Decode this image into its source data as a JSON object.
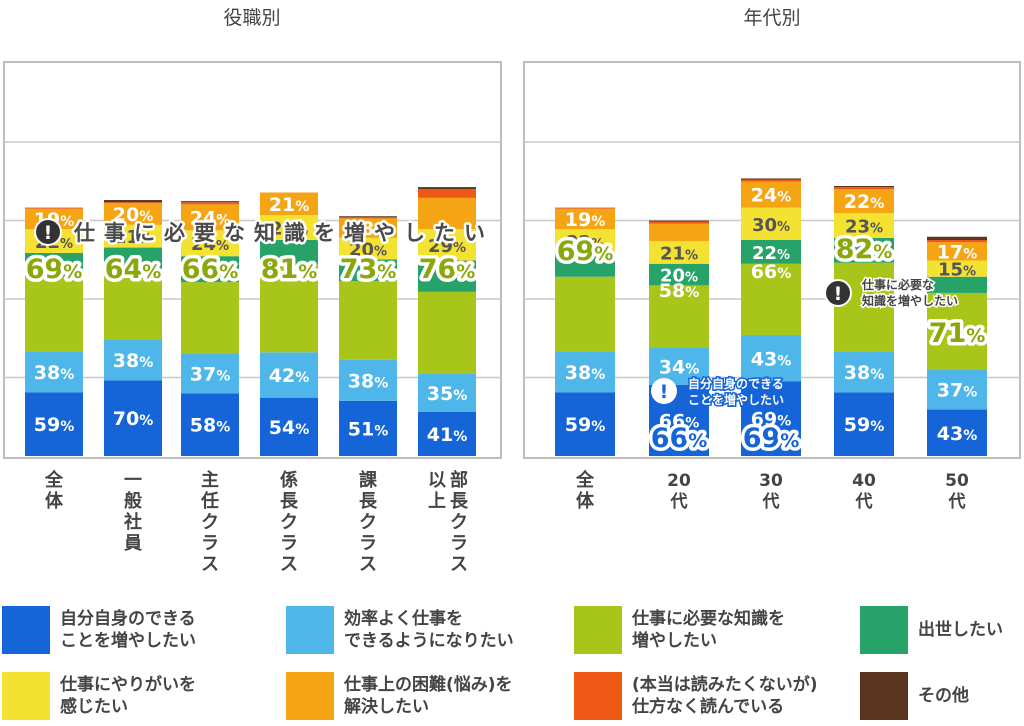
{
  "chart_data": [
    {
      "type": "bar",
      "stacked": true,
      "title": "役職別",
      "categories": [
        "全体",
        "一般社員",
        "主任クラス",
        "係長クラス",
        "課長クラス",
        "部長クラス以上"
      ],
      "series_order_bottom_to_top": [
        "increase_self",
        "efficiency",
        "knowledge",
        "promotion",
        "motivation",
        "problem_solving",
        "reluctant",
        "other"
      ],
      "values": {
        "increase_self": [
          59,
          70,
          58,
          54,
          51,
          41
        ],
        "efficiency": [
          38,
          38,
          37,
          42,
          38,
          35
        ],
        "knowledge": [
          69,
          64,
          66,
          81,
          73,
          76
        ],
        "promotion": [
          22,
          21,
          24,
          23,
          20,
          29
        ],
        "motivation": [
          22,
          21,
          24,
          23,
          20,
          29
        ],
        "problem_solving": [
          19,
          20,
          24,
          21,
          18,
          29
        ],
        "reluctant": [
          1,
          1,
          2,
          0,
          1,
          8
        ],
        "other": [
          0,
          2,
          1,
          0,
          1,
          2
        ]
      },
      "visible_labels": {
        "increase_self": [
          "59%",
          "70%",
          "58%",
          "54%",
          "51%",
          "41%"
        ],
        "efficiency": [
          "38%",
          "38%",
          "37%",
          "42%",
          "38%",
          "35%"
        ],
        "knowledge": [
          "69%",
          "64%",
          "66%",
          "81%",
          "73%",
          "76%"
        ],
        "motivation": [
          "22%",
          "21%",
          "24%",
          "23%",
          "20%",
          "29%"
        ],
        "problem_solving": [
          "19%",
          "20%",
          "24%",
          "21%",
          "18%",
          ""
        ]
      },
      "callout": "仕事に必要な知識を増やしたい",
      "grid": true
    },
    {
      "type": "bar",
      "stacked": true,
      "title": "年代別",
      "categories": [
        "全体",
        "20代",
        "30代",
        "40代",
        "50代"
      ],
      "values": {
        "increase_self": [
          59,
          66,
          69,
          59,
          43
        ],
        "efficiency": [
          38,
          34,
          43,
          38,
          37
        ],
        "knowledge": [
          69,
          58,
          66,
          82,
          71
        ],
        "promotion": [
          22,
          20,
          22,
          23,
          15
        ],
        "motivation": [
          22,
          21,
          30,
          23,
          15
        ],
        "problem_solving": [
          19,
          16,
          24,
          22,
          17
        ],
        "reluctant": [
          1,
          2,
          2,
          2,
          2
        ],
        "other": [
          0,
          1,
          1,
          1,
          3
        ]
      },
      "visible_labels": {
        "increase_self": [
          "59%",
          "66%",
          "69%",
          "59%",
          "43%"
        ],
        "efficiency": [
          "38%",
          "34%",
          "43%",
          "38%",
          "37%"
        ],
        "knowledge": [
          "69%",
          "58%",
          "66%",
          "82%",
          "71%"
        ],
        "promotion": [
          "",
          "20%",
          "22%",
          "",
          ""
        ],
        "motivation": [
          "22%",
          "21%",
          "30%",
          "23%",
          "15%"
        ],
        "problem_solving": [
          "19%",
          "",
          "24%",
          "22%",
          "17%"
        ]
      },
      "callouts": [
        "自分自身のできることを増やしたい",
        "仕事に必要な知識を増やしたい"
      ],
      "grid": true
    }
  ],
  "legend": [
    {
      "key": "increase_self",
      "label": "自分自身のできる\nことを増やしたい",
      "color": "#1565d8"
    },
    {
      "key": "efficiency",
      "label": "効率よく仕事を\nできるようになりたい",
      "color": "#4fb6ea"
    },
    {
      "key": "knowledge",
      "label": "仕事に必要な知識を\n増やしたい",
      "color": "#a8c51a"
    },
    {
      "key": "promotion",
      "label": "出世したい",
      "color": "#27a36a"
    },
    {
      "key": "motivation",
      "label": "仕事にやりがいを\n感じたい",
      "color": "#f4e233"
    },
    {
      "key": "problem_solving",
      "label": "仕事上の困難(悩み)を\n解決したい",
      "color": "#f5a514"
    },
    {
      "key": "reluctant",
      "label": "(本当は読みたくないが)\n仕方なく読んでいる",
      "color": "#ee5a16"
    },
    {
      "key": "other",
      "label": "その他",
      "color": "#5a3520"
    }
  ]
}
